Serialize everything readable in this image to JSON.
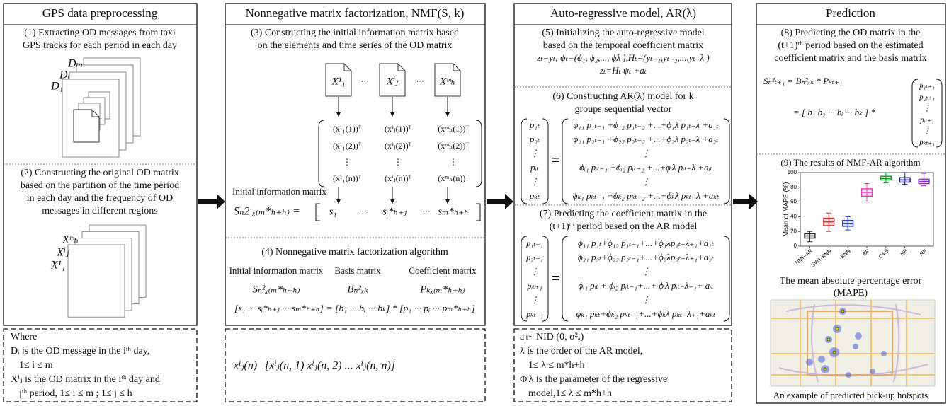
{
  "gps": {
    "title": "GPS data preprocessing",
    "step1": {
      "lines": [
        "(1) Extracting OD messages from taxi",
        "GPS tracks for each period in each day"
      ],
      "labels": [
        "Dₘ",
        "Dᵢ",
        "D₁"
      ]
    },
    "step2": {
      "lines": [
        "(2) Constructing the original OD matrix",
        "based on the partition of the time period",
        "in each day and the frequency of OD",
        "messages in different regions"
      ],
      "labels": [
        "Xᵐₕ",
        "Xⁱⱼ",
        "X¹₁"
      ]
    },
    "notes": [
      "Where",
      "Dᵢ is the OD message in the iᵗʰ day,",
      "1≤  i ≤ m",
      "Xⁱⱼ  is the OD matrix in the iᵗʰ day and",
      "jᵗʰ period, 1≤ i ≤ m ; 1≤ j ≤ h"
    ]
  },
  "nmf": {
    "title": "Nonnegative matrix factorization, NMF(S, k)",
    "step3": {
      "lines": [
        "(3) Constructing the initial information matrix based",
        "on the elements and time series of the OD matrix"
      ],
      "docs": [
        "X¹₁",
        "···",
        "Xⁱⱼ",
        "···",
        "Xᵐₕ"
      ],
      "matrix": [
        [
          "(x¹₁(1))ᵀ",
          "(xⁱⱼ(1))ᵀ",
          "(xᵐₕ(1))ᵀ"
        ],
        [
          "(x¹₁(2))ᵀ",
          "(xⁱⱼ(2))ᵀ",
          "(xᵐₕ(2))ᵀ"
        ],
        [
          "⋮",
          "⋮",
          "⋮"
        ],
        [
          "(x¹₁(n))ᵀ",
          "(xⁱⱼ(n))ᵀ",
          "(xᵐₕ(n))ᵀ"
        ]
      ],
      "matrix_label": "Initial information matrix",
      "equation_lhs": "Sₙ2 ₓ₍ₘ*ₕ₊ₕ₎  =",
      "equation_row": [
        "s₁",
        "···",
        "sᵢ*ₕ₊ⱼ",
        "···",
        "sₘ*ₕ₊ₕ"
      ]
    },
    "step4": {
      "lines": [
        "(4) Nonnegative matrix factorization algorithm"
      ],
      "headers": [
        "Initial information matrix",
        "Basis matrix",
        "Coefficient matrix"
      ],
      "symbols": [
        "Sₙ²ₓ₍ₘ*ₕ₊ₕ₎",
        "Bₙ²ₓₖ",
        "Pₖₓ₍ₘ*ₕ₊ₕ₎"
      ],
      "equation": "[s₁ ··· sᵢ*ₕ₊ⱼ ··· sₘ*ₕ₊ₕ] = [b₁ ··· bᵢ ··· bₖ] * [p₁ ··· pᵢ ··· pₘ*ₕ₊ₕ]"
    },
    "note": "xⁱⱼ(n)=[xⁱⱼ(n, 1) xⁱⱼ(n, 2) ... xⁱⱼ(n, n)]"
  },
  "ar": {
    "title": "Auto-regressive model, AR(λ)",
    "step5": {
      "lines": [
        "(5) Initializing the auto-regressive model",
        "based on the temporal coefficient matrix",
        "zₜ=yₜ,  ψₜ=(ϕ₁, ϕ₂,..., ϕλ ),Hₜ=(yₜ₋₁,yₜ₋₂,...,yₜ₋λ )",
        "zₜ=Hₜ ψₜ +aₜ"
      ]
    },
    "step6": {
      "lines": [
        "(6) Constructing AR(λ) model for k",
        "groups sequential vector"
      ],
      "vector": [
        "p₁ₜ",
        "p₂ₜ",
        "⋮",
        "pᵢₜ",
        "⋮",
        "pₖₜ"
      ],
      "equals": "=",
      "rows": [
        "ϕ₁₁ p₁ₜ₋₁ +ϕ₁₂ p₁ₜ₋₂ +...+ϕ₁λ p₁ₜ₋λ +a₁ₜ",
        "ϕ₂₁ p₂ₜ₋₁ +ϕ₂₂ p₂ₜ₋₂ +...+ϕ₂λ p₂ₜ₋λ +a₂ₜ",
        "⋮",
        "ϕᵢ₁ pᵢₜ₋₁ +ϕᵢ₂ pᵢₜ₋₂ +...+ϕᵢλ pᵢₜ₋λ +aᵢₜ",
        "⋮",
        "ϕₖ₁ pₖₜ₋₁ +ϕₖ₂ pₖₜ₋₂ +...+ϕₖλ pₖₜ₋λ +aₖₜ"
      ]
    },
    "step7": {
      "lines": [
        "(7) Predicting the coefficient matrix in the",
        "(t+1)ᵗʰ period based on the AR model"
      ],
      "vector": [
        "p₁ₜ₊₁",
        "p₂ₜ₊₁",
        "⋮",
        "pᵢₜ₊₁",
        "⋮",
        "pₖₜ₊₁"
      ],
      "equals": "=",
      "rows": [
        "ϕ₁₁ p₁ₜ+ϕ₁₂ p₁ₜ₋₁+...+ϕ₁λp₁ₜ₋λ₊₁+a₁ₜ",
        "ϕ₂₁ p₂ₜ+ϕ₂₂ p₂ₜ₋₁+...+ϕ₂λp₂ₜ₋λ₊₁+a₂ₜ",
        "⋮",
        "ϕᵢ₁ pᵢₜ + ϕᵢ₂ pᵢₜ₋₁+...+ ϕᵢλ pᵢₜ₋λ₊₁+ aᵢₜ",
        "⋮",
        "ϕₖ₁ pₖₜ+ϕₖ₂ pₖₜ₋₁+...+ϕₖλ pₖₜ₋λ₊₁+aₖₜ"
      ]
    },
    "notes": [
      "aᵢₜ~ NID (0, σ²ₐ)",
      "λ is the order of the AR model,",
      "1≤ λ ≤ m*h+h",
      "Φᵢλ is the parameter of the regressive",
      "model,1≤ λ ≤ m*h+h"
    ]
  },
  "prediction": {
    "title": "Prediction",
    "step8": {
      "lines": [
        "(8) Predicting the OD matrix in the",
        "(t+1)ᵗʰ period based on the estimated",
        "coefficient matrix and the basis matrix"
      ],
      "equation1": "Sₙ²ₜ₊₁  =     Bₙ²ₓₖ  * Pₖₜ₊₁",
      "equation2": "= [ b₁ b₂ ··· bᵢ ··· bₖ ]  *",
      "vector": [
        "p₁ₜ₊₁",
        "p₂ₜ₊₁",
        "⋮",
        "pᵢₜ₊₁",
        "⋮",
        "pₖₜ₊₁"
      ]
    },
    "step9": {
      "title": "(9) The results of NMF-AR algorithm",
      "chart": {
        "type": "box",
        "ylabel": "Mean of MAPE (%)",
        "ylim": [
          0,
          100
        ],
        "yticks": [
          0,
          20,
          40,
          60,
          80,
          100
        ],
        "boxes": [
          {
            "name": "NMF-AR",
            "color": "#222222",
            "min": 6,
            "q1": 11,
            "median": 14,
            "q3": 17,
            "max": 20
          },
          {
            "name": "SWT-KNN",
            "color": "#d62728",
            "min": 20,
            "q1": 28,
            "median": 33,
            "q3": 38,
            "max": 45
          },
          {
            "name": "KNN",
            "color": "#1f3fd0",
            "min": 22,
            "q1": 27,
            "median": 31,
            "q3": 35,
            "max": 40
          },
          {
            "name": "BP",
            "color": "#e040c0",
            "min": 60,
            "q1": 68,
            "median": 73,
            "q3": 78,
            "max": 85
          },
          {
            "name": "C4.5",
            "color": "#1a9a30",
            "min": 86,
            "q1": 90,
            "median": 92,
            "q3": 95,
            "max": 100
          },
          {
            "name": "NB",
            "color": "#1a1a8a",
            "min": 84,
            "q1": 87,
            "median": 90,
            "q3": 93,
            "max": 100
          },
          {
            "name": "RF",
            "color": "#8a2be2",
            "min": 82,
            "q1": 85,
            "median": 88,
            "q3": 91,
            "max": 99
          }
        ]
      },
      "caption": [
        "The mean absolute percentage error",
        "(MAPE)"
      ],
      "map_caption": "An example of predicted pick-up hotspots"
    }
  }
}
